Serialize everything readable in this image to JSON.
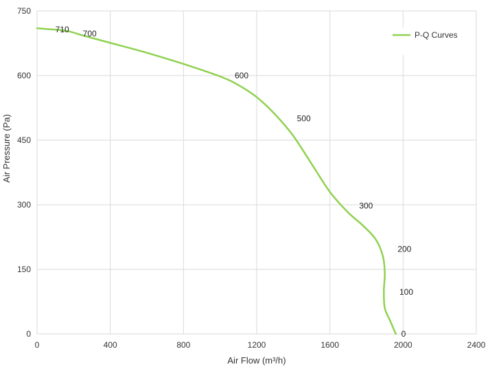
{
  "chart_data": {
    "type": "line",
    "xlabel": "Air Flow  (m³/h)",
    "ylabel": "Air Pressure  (Pa)",
    "xlim": [
      0,
      2400
    ],
    "ylim": [
      0,
      750
    ],
    "x_ticks": [
      0,
      400,
      800,
      1200,
      1600,
      2000,
      2400
    ],
    "y_ticks": [
      0,
      150,
      300,
      450,
      600,
      750
    ],
    "grid": true,
    "legend": "top-right",
    "colors": {
      "line": "#8fd14f"
    },
    "series": [
      {
        "name": "P-Q Curves",
        "x": [
          0,
          60,
          120,
          180,
          260,
          400,
          600,
          800,
          1000,
          1100,
          1200,
          1300,
          1400,
          1500,
          1600,
          1700,
          1780,
          1850,
          1890,
          1900,
          1895,
          1900,
          1930,
          1960
        ],
        "y": [
          710,
          708,
          706,
          702,
          692,
          676,
          653,
          627,
          598,
          578,
          550,
          510,
          460,
          395,
          330,
          282,
          252,
          220,
          180,
          140,
          100,
          60,
          30,
          0
        ]
      }
    ],
    "point_labels": [
      {
        "text": "710",
        "x": 100,
        "y": 707
      },
      {
        "text": "700",
        "x": 250,
        "y": 697
      },
      {
        "text": "600",
        "x": 1080,
        "y": 600
      },
      {
        "text": "500",
        "x": 1420,
        "y": 500
      },
      {
        "text": "300",
        "x": 1760,
        "y": 298
      },
      {
        "text": "200",
        "x": 1970,
        "y": 197
      },
      {
        "text": "100",
        "x": 1980,
        "y": 97
      },
      {
        "text": "0",
        "x": 1990,
        "y": 0
      }
    ]
  }
}
